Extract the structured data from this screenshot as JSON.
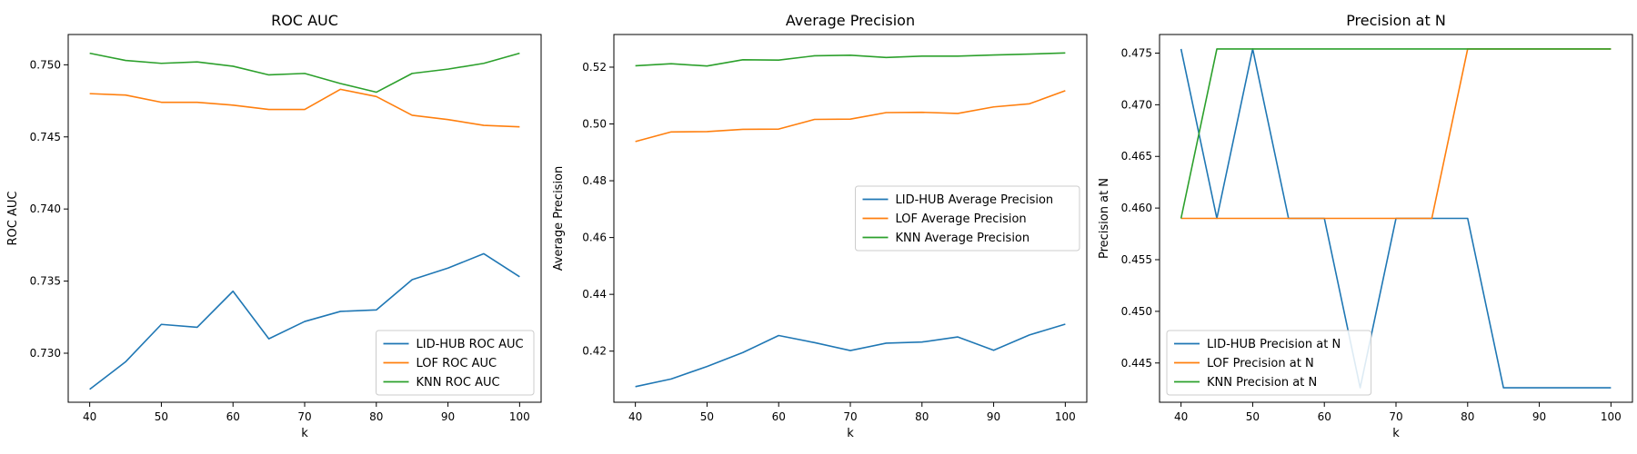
{
  "chart_data": [
    {
      "type": "line",
      "title": "ROC AUC",
      "xlabel": "k",
      "ylabel": "ROC AUC",
      "x": [
        40,
        45,
        50,
        55,
        60,
        65,
        70,
        75,
        80,
        85,
        90,
        95,
        100
      ],
      "xlim": [
        37,
        103
      ],
      "ylim": [
        0.7266,
        0.7521
      ],
      "xticks": [
        40,
        50,
        60,
        70,
        80,
        90,
        100
      ],
      "yticks": [
        0.73,
        0.735,
        0.74,
        0.745,
        0.75
      ],
      "ytick_labels": [
        "0.730",
        "0.735",
        "0.740",
        "0.745",
        "0.750"
      ],
      "legend_position": "lower-right",
      "series": [
        {
          "name": "LID-HUB ROC AUC",
          "color": "#1f77b4",
          "values": [
            0.7275,
            0.7294,
            0.732,
            0.7318,
            0.7343,
            0.731,
            0.7322,
            0.7329,
            0.733,
            0.7351,
            0.7359,
            0.7369,
            0.7353
          ]
        },
        {
          "name": "LOF ROC AUC",
          "color": "#ff7f0e",
          "values": [
            0.748,
            0.7479,
            0.7474,
            0.7474,
            0.7472,
            0.7469,
            0.7469,
            0.7483,
            0.7478,
            0.7465,
            0.7462,
            0.7458,
            0.7457
          ]
        },
        {
          "name": "KNN ROC AUC",
          "color": "#2ca02c",
          "values": [
            0.7508,
            0.7503,
            0.7501,
            0.7502,
            0.7499,
            0.7493,
            0.7494,
            0.7487,
            0.7481,
            0.7494,
            0.7497,
            0.7501,
            0.7508
          ]
        }
      ]
    },
    {
      "type": "line",
      "title": "Average Precision",
      "xlabel": "k",
      "ylabel": "Average Precision",
      "x": [
        40,
        45,
        50,
        55,
        60,
        65,
        70,
        75,
        80,
        85,
        90,
        95,
        100
      ],
      "xlim": [
        37,
        103
      ],
      "ylim": [
        0.402,
        0.5315
      ],
      "xticks": [
        40,
        50,
        60,
        70,
        80,
        90,
        100
      ],
      "yticks": [
        0.42,
        0.44,
        0.46,
        0.48,
        0.5,
        0.52
      ],
      "ytick_labels": [
        "0.42",
        "0.44",
        "0.46",
        "0.48",
        "0.50",
        "0.52"
      ],
      "legend_position": "center-right",
      "series": [
        {
          "name": "LID-HUB Average Precision",
          "color": "#1f77b4",
          "values": [
            0.4075,
            0.4102,
            0.4146,
            0.4195,
            0.4255,
            0.423,
            0.4202,
            0.4228,
            0.4232,
            0.425,
            0.4203,
            0.4257,
            0.4295
          ]
        },
        {
          "name": "LOF Average Precision",
          "color": "#ff7f0e",
          "values": [
            0.4938,
            0.4972,
            0.4973,
            0.4981,
            0.4982,
            0.5016,
            0.5017,
            0.504,
            0.5041,
            0.5037,
            0.506,
            0.5071,
            0.5117
          ]
        },
        {
          "name": "KNN Average Precision",
          "color": "#2ca02c",
          "values": [
            0.5205,
            0.5212,
            0.5204,
            0.5226,
            0.5225,
            0.524,
            0.5242,
            0.5234,
            0.5239,
            0.5239,
            0.5243,
            0.5246,
            0.525
          ]
        }
      ]
    },
    {
      "type": "line",
      "title": "Precision at N",
      "xlabel": "k",
      "ylabel": "Precision at N",
      "x": [
        40,
        45,
        50,
        55,
        60,
        65,
        70,
        75,
        80,
        85,
        90,
        95,
        100
      ],
      "xlim": [
        37,
        103
      ],
      "ylim": [
        0.4412,
        0.4768
      ],
      "xticks": [
        40,
        50,
        60,
        70,
        80,
        90,
        100
      ],
      "yticks": [
        0.445,
        0.45,
        0.455,
        0.46,
        0.465,
        0.47,
        0.475
      ],
      "ytick_labels": [
        "0.445",
        "0.450",
        "0.455",
        "0.460",
        "0.465",
        "0.470",
        "0.475"
      ],
      "legend_position": "lower-left",
      "series": [
        {
          "name": "LID-HUB Precision at N",
          "color": "#1f77b4",
          "values": [
            0.4754,
            0.459,
            0.4754,
            0.459,
            0.459,
            0.4426,
            0.459,
            0.459,
            0.459,
            0.4426,
            0.4426,
            0.4426,
            0.4426
          ]
        },
        {
          "name": "LOF Precision at N",
          "color": "#ff7f0e",
          "values": [
            0.459,
            0.459,
            0.459,
            0.459,
            0.459,
            0.459,
            0.459,
            0.459,
            0.4754,
            0.4754,
            0.4754,
            0.4754,
            0.4754
          ]
        },
        {
          "name": "KNN Precision at N",
          "color": "#2ca02c",
          "values": [
            0.459,
            0.4754,
            0.4754,
            0.4754,
            0.4754,
            0.4754,
            0.4754,
            0.4754,
            0.4754,
            0.4754,
            0.4754,
            0.4754,
            0.4754
          ]
        }
      ]
    }
  ]
}
